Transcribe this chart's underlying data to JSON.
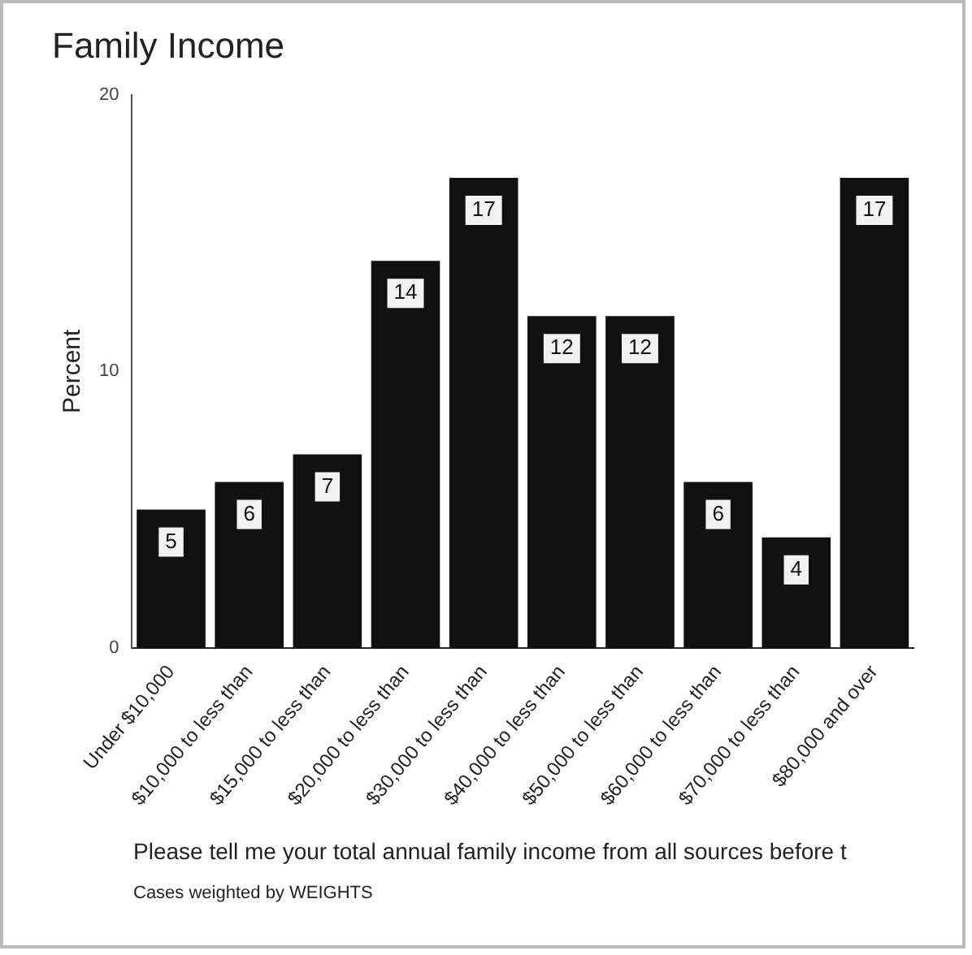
{
  "chart_data": {
    "type": "bar",
    "title": "Family Income",
    "ylabel": "Percent",
    "categories": [
      "Under $10,000",
      "$10,000 to less than",
      "$15,000 to less than",
      "$20,000 to less than",
      "$30,000 to less than",
      "$40,000 to less than",
      "$50,000 to less than",
      "$60,000 to less than",
      "$70,000 to less than",
      "$80,000 and over"
    ],
    "values": [
      5,
      6,
      7,
      14,
      17,
      12,
      12,
      6,
      4,
      17
    ],
    "color": "#111111",
    "ylim": [
      0,
      20
    ],
    "yticks": [
      0,
      10,
      20
    ],
    "grid": false,
    "legend": false,
    "data_labels": true,
    "annotations": [
      "Please tell me your total annual family income from all sources before t",
      "Cases weighted by WEIGHTS"
    ]
  }
}
